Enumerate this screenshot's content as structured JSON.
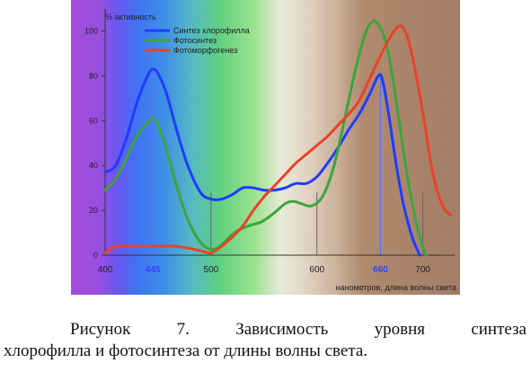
{
  "chart_data": {
    "type": "line",
    "ylabel": "% активность",
    "xlabel": "нанометров, длина волны света",
    "xlim": [
      400,
      730
    ],
    "ylim": [
      0,
      105
    ],
    "x_ticks": [
      400,
      445,
      500,
      600,
      660,
      700
    ],
    "x_tick_labels": [
      "400",
      "445",
      "500",
      "600",
      "660",
      "700"
    ],
    "highlight_ticks": [
      "445",
      "660"
    ],
    "y_ticks": [
      0,
      20,
      40,
      60,
      80,
      100
    ],
    "y_tick_labels": [
      "0",
      "20",
      "40",
      "60",
      "80",
      "100"
    ],
    "legend_position": "top-left",
    "background": "visible light spectrum: violet → blue → green → yellow → red/brown",
    "series": [
      {
        "name": "Синтез хлорофилла",
        "color": "#1f3cff",
        "points": [
          [
            400,
            37
          ],
          [
            410,
            40
          ],
          [
            420,
            52
          ],
          [
            430,
            68
          ],
          [
            440,
            80
          ],
          [
            445,
            83
          ],
          [
            450,
            81
          ],
          [
            458,
            72
          ],
          [
            468,
            55
          ],
          [
            478,
            40
          ],
          [
            490,
            28
          ],
          [
            500,
            25
          ],
          [
            510,
            25
          ],
          [
            520,
            27
          ],
          [
            530,
            30
          ],
          [
            540,
            30
          ],
          [
            550,
            29
          ],
          [
            560,
            29
          ],
          [
            570,
            30
          ],
          [
            580,
            32
          ],
          [
            590,
            32
          ],
          [
            600,
            35
          ],
          [
            610,
            41
          ],
          [
            620,
            48
          ],
          [
            630,
            56
          ],
          [
            640,
            63
          ],
          [
            650,
            72
          ],
          [
            658,
            80
          ],
          [
            662,
            78
          ],
          [
            668,
            62
          ],
          [
            675,
            40
          ],
          [
            682,
            22
          ],
          [
            690,
            8
          ],
          [
            697,
            0
          ]
        ]
      },
      {
        "name": "Фотосинтез",
        "color": "#3ca53c",
        "points": [
          [
            400,
            29
          ],
          [
            410,
            34
          ],
          [
            420,
            43
          ],
          [
            430,
            53
          ],
          [
            440,
            59
          ],
          [
            445,
            61
          ],
          [
            450,
            58
          ],
          [
            458,
            47
          ],
          [
            468,
            30
          ],
          [
            478,
            16
          ],
          [
            488,
            7
          ],
          [
            497,
            3
          ],
          [
            505,
            3
          ],
          [
            513,
            6
          ],
          [
            522,
            10
          ],
          [
            535,
            13
          ],
          [
            548,
            15
          ],
          [
            560,
            19
          ],
          [
            570,
            23
          ],
          [
            578,
            24
          ],
          [
            585,
            23
          ],
          [
            595,
            22
          ],
          [
            605,
            26
          ],
          [
            615,
            38
          ],
          [
            625,
            58
          ],
          [
            635,
            80
          ],
          [
            645,
            98
          ],
          [
            652,
            104
          ],
          [
            658,
            103
          ],
          [
            665,
            95
          ],
          [
            672,
            78
          ],
          [
            680,
            52
          ],
          [
            688,
            28
          ],
          [
            696,
            10
          ],
          [
            703,
            0
          ]
        ]
      },
      {
        "name": "Фотоморфогенез",
        "color": "#e8432a",
        "points": [
          [
            400,
            1
          ],
          [
            410,
            4
          ],
          [
            425,
            4
          ],
          [
            445,
            4
          ],
          [
            465,
            4
          ],
          [
            480,
            3
          ],
          [
            490,
            2
          ],
          [
            500,
            1
          ],
          [
            510,
            4
          ],
          [
            520,
            8
          ],
          [
            530,
            13
          ],
          [
            540,
            20
          ],
          [
            550,
            26
          ],
          [
            560,
            31
          ],
          [
            570,
            36
          ],
          [
            580,
            41
          ],
          [
            590,
            45
          ],
          [
            600,
            49
          ],
          [
            610,
            53
          ],
          [
            620,
            58
          ],
          [
            630,
            63
          ],
          [
            640,
            69
          ],
          [
            650,
            79
          ],
          [
            660,
            89
          ],
          [
            670,
            98
          ],
          [
            677,
            102
          ],
          [
            682,
            101
          ],
          [
            688,
            93
          ],
          [
            695,
            77
          ],
          [
            702,
            58
          ],
          [
            708,
            40
          ],
          [
            714,
            28
          ],
          [
            720,
            21
          ],
          [
            726,
            18
          ]
        ]
      }
    ]
  },
  "caption": {
    "line1_words": [
      "Рисунок",
      "7.",
      "Зависимость",
      "уровня",
      "синтеза"
    ],
    "line2": "хлорофилла и фотосинтеза от длины волны света."
  }
}
